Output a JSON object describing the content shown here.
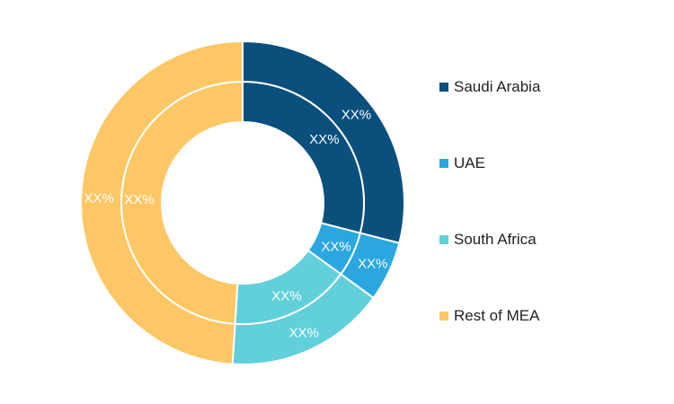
{
  "chart_data": {
    "type": "pie",
    "style": "nested-donut",
    "title": "",
    "series": [
      {
        "ring": "outer",
        "values": [
          29,
          6,
          16,
          49
        ],
        "labels": [
          "XX%",
          "XX%",
          "XX%",
          "XX%"
        ]
      },
      {
        "ring": "inner",
        "values": [
          29,
          6,
          16,
          49
        ],
        "labels": [
          "XX%",
          "XX%",
          "XX%",
          "XX%"
        ]
      }
    ],
    "categories": [
      "Saudi Arabia",
      "UAE",
      "South Africa",
      "Rest of MEA"
    ],
    "colors": [
      "#0b4f7d",
      "#2ba7e0",
      "#62d0da",
      "#fdc766"
    ],
    "legend_placement": "right"
  }
}
